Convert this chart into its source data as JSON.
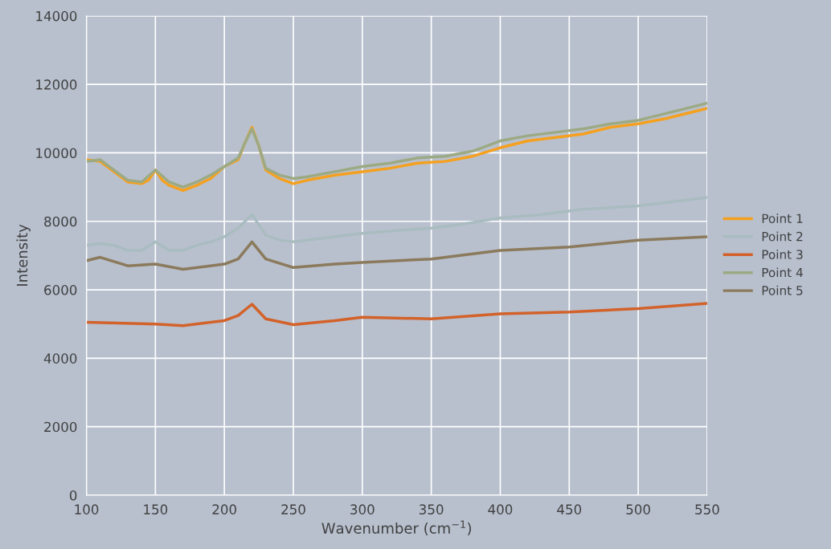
{
  "chart_data": {
    "type": "line",
    "xlabel": "Wavenumber (cm$^{−1}$)",
    "ylabel": "Intensity",
    "xlim": [
      100,
      550
    ],
    "xticks": [
      100,
      150,
      200,
      250,
      300,
      350,
      400,
      450,
      500,
      550
    ],
    "ylim": [
      0,
      14000
    ],
    "yticks": [
      0,
      2000,
      4000,
      6000,
      8000,
      10000,
      12000,
      14000
    ],
    "grid": true,
    "legend": "right",
    "marker": "none",
    "line_style": "solid",
    "series": [
      {
        "name": "Point 1",
        "color": "#f5a01e",
        "x": [
          100,
          110,
          120,
          130,
          140,
          145,
          150,
          155,
          160,
          170,
          180,
          190,
          200,
          210,
          215,
          220,
          225,
          230,
          240,
          250,
          260,
          280,
          300,
          320,
          340,
          360,
          380,
          400,
          420,
          440,
          460,
          480,
          500,
          520,
          540,
          550
        ],
        "values": [
          9800,
          9750,
          9450,
          9150,
          9100,
          9200,
          9500,
          9200,
          9050,
          8900,
          9050,
          9250,
          9600,
          9800,
          10300,
          10750,
          10200,
          9500,
          9250,
          9100,
          9200,
          9350,
          9450,
          9550,
          9700,
          9750,
          9900,
          10150,
          10350,
          10450,
          10550,
          10750,
          10850,
          11000,
          11200,
          11300
        ]
      },
      {
        "name": "Point 2",
        "color": "#a9bcc0",
        "x": [
          100,
          110,
          120,
          130,
          140,
          150,
          160,
          170,
          180,
          190,
          200,
          210,
          220,
          230,
          240,
          250,
          270,
          300,
          330,
          350,
          370,
          400,
          430,
          460,
          500,
          530,
          550
        ],
        "values": [
          7300,
          7350,
          7300,
          7150,
          7150,
          7400,
          7150,
          7150,
          7300,
          7400,
          7550,
          7800,
          8200,
          7600,
          7450,
          7400,
          7500,
          7650,
          7750,
          7800,
          7900,
          8100,
          8200,
          8350,
          8450,
          8600,
          8700
        ]
      },
      {
        "name": "Point 3",
        "color": "#d3622a",
        "x": [
          100,
          150,
          170,
          200,
          210,
          220,
          230,
          250,
          280,
          300,
          350,
          400,
          450,
          500,
          550
        ],
        "values": [
          5050,
          5000,
          4950,
          5100,
          5250,
          5580,
          5150,
          4980,
          5100,
          5200,
          5150,
          5300,
          5350,
          5450,
          5600
        ]
      },
      {
        "name": "Point 4",
        "color": "#9caa84",
        "x": [
          100,
          110,
          120,
          130,
          140,
          150,
          160,
          170,
          180,
          190,
          200,
          210,
          215,
          220,
          225,
          230,
          240,
          250,
          260,
          280,
          300,
          320,
          340,
          360,
          380,
          400,
          420,
          440,
          460,
          480,
          500,
          520,
          540,
          550
        ],
        "values": [
          9750,
          9800,
          9500,
          9200,
          9150,
          9500,
          9150,
          9000,
          9150,
          9350,
          9600,
          9850,
          10300,
          10700,
          10200,
          9550,
          9350,
          9250,
          9300,
          9450,
          9600,
          9700,
          9850,
          9900,
          10050,
          10350,
          10500,
          10600,
          10700,
          10850,
          10950,
          11150,
          11350,
          11450
        ]
      },
      {
        "name": "Point 5",
        "color": "#8b7a5c",
        "x": [
          100,
          110,
          130,
          150,
          170,
          200,
          210,
          220,
          230,
          250,
          280,
          300,
          350,
          400,
          450,
          500,
          550
        ],
        "values": [
          6850,
          6950,
          6700,
          6750,
          6600,
          6750,
          6900,
          7400,
          6900,
          6650,
          6750,
          6800,
          6900,
          7150,
          7250,
          7450,
          7550
        ]
      }
    ]
  }
}
